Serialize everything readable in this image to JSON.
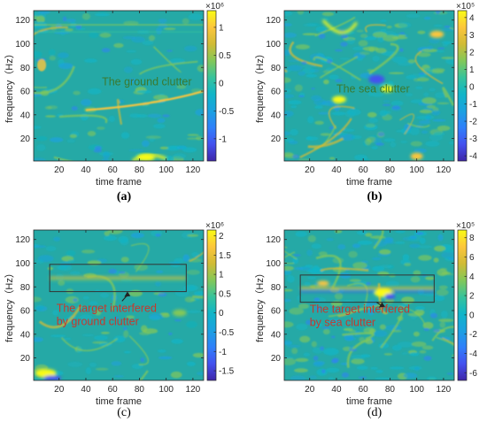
{
  "colors": {
    "field": "#25a9a6",
    "colormap": [
      "#3e26a8",
      "#4451ef",
      "#2f80fa",
      "#1ba1e0",
      "#10b5c8",
      "#37c39b",
      "#84c858",
      "#d1bb35",
      "#fcc63c",
      "#f9fb15"
    ],
    "box": "#333333"
  },
  "chart_data": [
    {
      "id": "a",
      "type": "heatmap",
      "caption": "(a)",
      "xlabel": "time frame",
      "ylabel": "frequency（Hz）",
      "xticks": [
        "20",
        "40",
        "60",
        "80",
        "100",
        "120"
      ],
      "yticks": [
        "20",
        "40",
        "60",
        "80",
        "100",
        "120"
      ],
      "xlim": [
        1,
        128
      ],
      "ylim": [
        1,
        128
      ],
      "colorbar": {
        "exponent": "×10⁶",
        "ticks": [
          "1",
          "0.5",
          "0",
          "-0.5",
          "-1"
        ],
        "values": [
          1,
          0.5,
          0,
          -0.5,
          -1
        ],
        "range": [
          -1.4,
          1.3
        ]
      },
      "annotation": {
        "text": "The ground clutter",
        "x": 52,
        "y": 65,
        "color": "#3a7a30"
      },
      "texture": "ground"
    },
    {
      "id": "b",
      "type": "heatmap",
      "caption": "(b)",
      "xlabel": "time frame",
      "ylabel": "frequency（Hz）",
      "xticks": [
        "20",
        "40",
        "60",
        "80",
        "100",
        "120"
      ],
      "yticks": [
        "20",
        "40",
        "60",
        "80",
        "100",
        "120"
      ],
      "xlim": [
        1,
        128
      ],
      "ylim": [
        1,
        128
      ],
      "colorbar": {
        "exponent": "×10⁵",
        "ticks": [
          "4",
          "3",
          "2",
          "1",
          "0",
          "-1",
          "-2",
          "-3",
          "-4"
        ],
        "values": [
          4,
          3,
          2,
          1,
          0,
          -1,
          -2,
          -3,
          -4
        ],
        "range": [
          -4.3,
          4.4
        ]
      },
      "annotation": {
        "text": "The sea clutter",
        "x": 40,
        "y": 59,
        "color": "#3a7a30"
      },
      "texture": "sea"
    },
    {
      "id": "c",
      "type": "heatmap",
      "caption": "(c)",
      "xlabel": "time frame",
      "ylabel": "frequency（Hz）",
      "xticks": [
        "20",
        "40",
        "60",
        "80",
        "100",
        "120"
      ],
      "yticks": [
        "20",
        "40",
        "60",
        "80",
        "100",
        "120"
      ],
      "xlim": [
        1,
        128
      ],
      "ylim": [
        1,
        128
      ],
      "colorbar": {
        "exponent": "×10⁶",
        "ticks": [
          "2",
          "1.5",
          "1",
          "0.5",
          "0",
          "-0.5",
          "-1",
          "-1.5"
        ],
        "values": [
          2,
          1.5,
          1,
          0.5,
          0,
          -0.5,
          -1,
          -1.5
        ],
        "range": [
          -1.75,
          2.15
        ]
      },
      "box": {
        "x": [
          13,
          115
        ],
        "y": [
          76,
          99
        ]
      },
      "annotation": {
        "lines": [
          "The target interfered",
          "by ground clutter"
        ],
        "x": 18,
        "y": 59,
        "color": "#c43a2e",
        "arrow_to": [
          71,
          76
        ]
      },
      "texture": "groundtarget"
    },
    {
      "id": "d",
      "type": "heatmap",
      "caption": "(d)",
      "xlabel": "time frame",
      "ylabel": "frequency（Hz）",
      "xticks": [
        "20",
        "40",
        "60",
        "80",
        "100",
        "120"
      ],
      "yticks": [
        "20",
        "40",
        "60",
        "80",
        "100",
        "120"
      ],
      "xlim": [
        1,
        128
      ],
      "ylim": [
        1,
        128
      ],
      "colorbar": {
        "exponent": "×10⁵",
        "ticks": [
          "8",
          "6",
          "4",
          "2",
          "0",
          "-2",
          "-4",
          "-6"
        ],
        "values": [
          8,
          6,
          4,
          2,
          0,
          -2,
          -4,
          -6
        ],
        "range": [
          -6.8,
          8.8
        ]
      },
      "box": {
        "x": [
          13,
          113
        ],
        "y": [
          67,
          90
        ]
      },
      "annotation": {
        "lines": [
          "The target interfered",
          "by sea clutter"
        ],
        "x": 20,
        "y": 58,
        "color": "#c43a2e",
        "arrow_to": [
          74,
          67
        ]
      },
      "texture": "seatarget"
    }
  ]
}
